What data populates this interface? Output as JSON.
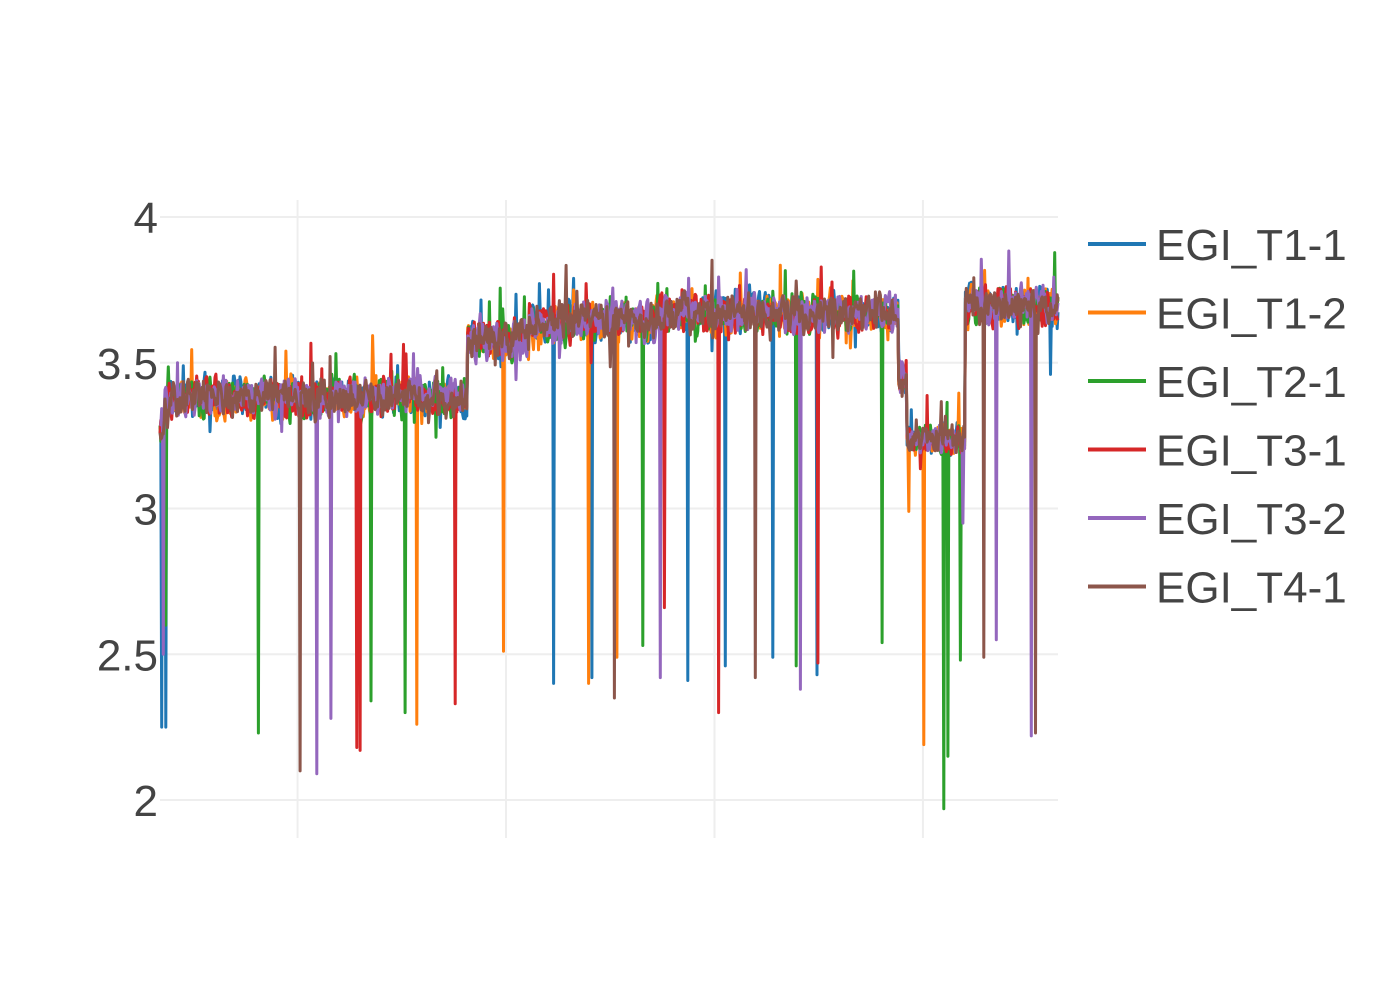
{
  "chart_data": {
    "type": "line",
    "title": "",
    "xlabel": "",
    "ylabel": "",
    "x_range": [
      0,
      1077
    ],
    "ylim": [
      1.95,
      4.07
    ],
    "yticks": [
      {
        "value": 4,
        "label": "4"
      },
      {
        "value": 3.5,
        "label": "3.5"
      },
      {
        "value": 3,
        "label": "3"
      },
      {
        "value": 2.5,
        "label": "2.5"
      },
      {
        "value": 2,
        "label": "2"
      }
    ],
    "xgrid": [
      165,
      415,
      665,
      915
    ],
    "x_tick_labels": [],
    "grid": true,
    "legend": "right",
    "segments": [
      {
        "x": [
          0,
          5
        ],
        "mean": 3.3
      },
      {
        "x": [
          5,
          368
        ],
        "mean": 3.38
      },
      {
        "x": [
          368,
          442
        ],
        "mean": 3.58
      },
      {
        "x": [
          442,
          595
        ],
        "mean": 3.64
      },
      {
        "x": [
          595,
          885
        ],
        "mean": 3.67
      },
      {
        "x": [
          885,
          895
        ],
        "mean": 3.45
      },
      {
        "x": [
          895,
          965
        ],
        "mean": 3.24
      },
      {
        "x": [
          965,
          1077
        ],
        "mean": 3.7
      }
    ],
    "series": [
      {
        "name": "EGI_T1-1",
        "color": "#1f77b4",
        "seed": 11,
        "dips": [
          [
            2,
            2.25
          ],
          [
            7,
            2.25
          ],
          [
            472,
            2.4
          ],
          [
            518,
            2.42
          ],
          [
            633,
            2.41
          ],
          [
            678,
            2.46
          ],
          [
            735,
            2.49
          ],
          [
            788,
            2.43
          ],
          [
            1068,
            3.46
          ]
        ]
      },
      {
        "name": "EGI_T1-2",
        "color": "#ff7f0e",
        "seed": 23,
        "dips": [
          [
            308,
            2.26
          ],
          [
            412,
            2.51
          ],
          [
            514,
            2.4
          ],
          [
            548,
            2.49
          ],
          [
            916,
            2.19
          ],
          [
            898,
            2.99
          ]
        ]
      },
      {
        "name": "EGI_T2-1",
        "color": "#2ca02c",
        "seed": 37,
        "dips": [
          [
            118,
            2.23
          ],
          [
            253,
            2.34
          ],
          [
            294,
            2.3
          ],
          [
            579,
            2.53
          ],
          [
            763,
            2.46
          ],
          [
            866,
            2.54
          ],
          [
            940,
            1.97
          ],
          [
            945,
            2.15
          ],
          [
            960,
            2.48
          ],
          [
            7,
            2.6
          ]
        ]
      },
      {
        "name": "EGI_T3-1",
        "color": "#d62728",
        "seed": 53,
        "dips": [
          [
            236,
            2.18
          ],
          [
            240,
            2.17
          ],
          [
            354,
            2.33
          ],
          [
            605,
            2.66
          ],
          [
            670,
            2.3
          ],
          [
            789,
            2.47
          ]
        ]
      },
      {
        "name": "EGI_T3-2",
        "color": "#9467bd",
        "seed": 71,
        "dips": [
          [
            4,
            2.5
          ],
          [
            188,
            2.09
          ],
          [
            205,
            2.28
          ],
          [
            600,
            2.42
          ],
          [
            768,
            2.38
          ],
          [
            963,
            2.95
          ],
          [
            1003,
            2.55
          ],
          [
            1045,
            2.22
          ]
        ]
      },
      {
        "name": "EGI_T4-1",
        "color": "#8c564b",
        "seed": 97,
        "dips": [
          [
            168,
            2.1
          ],
          [
            545,
            2.35
          ],
          [
            714,
            2.42
          ],
          [
            988,
            2.49
          ],
          [
            1050,
            2.23
          ]
        ]
      }
    ]
  }
}
